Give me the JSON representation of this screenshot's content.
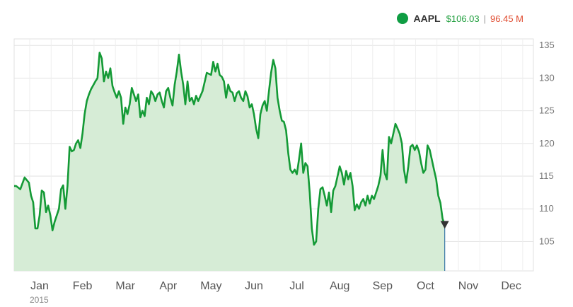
{
  "legend": {
    "ticker": "AAPL",
    "price": "$106.03",
    "separator": "|",
    "volume": "96.45 M"
  },
  "colors": {
    "line": "#149a36",
    "fill": "#d6ecd6",
    "grid": "#e2e2e2",
    "marker": "#333333",
    "cursor": "#3a78a8"
  },
  "chart_data": {
    "type": "area",
    "title": "",
    "xlabel": "",
    "ylabel": "",
    "ylim": [
      100.5,
      136
    ],
    "yticks": [
      105,
      110,
      115,
      120,
      125,
      130,
      135
    ],
    "x_tick_labels": [
      "Jan",
      "Feb",
      "Mar",
      "Apr",
      "May",
      "Jun",
      "Jul",
      "Aug",
      "Sep",
      "Oct",
      "Nov",
      "Dec"
    ],
    "x_tick_months": [
      1,
      2,
      3,
      4,
      5,
      6,
      7,
      8,
      9,
      10,
      11,
      12
    ],
    "year_label": "2015",
    "grid": true,
    "series": [
      {
        "points": [
          [
            0.45,
            113.5
          ],
          [
            0.55,
            113.0
          ],
          [
            0.65,
            114.8
          ],
          [
            0.75,
            114.0
          ],
          [
            0.8,
            112.0
          ],
          [
            0.85,
            111.0
          ],
          [
            0.9,
            107.0
          ],
          [
            0.95,
            107.0
          ],
          [
            1.0,
            109.0
          ],
          [
            1.05,
            112.8
          ],
          [
            1.1,
            112.5
          ],
          [
            1.15,
            109.5
          ],
          [
            1.2,
            110.5
          ],
          [
            1.25,
            109.0
          ],
          [
            1.3,
            106.7
          ],
          [
            1.35,
            108.0
          ],
          [
            1.45,
            110.0
          ],
          [
            1.5,
            113.0
          ],
          [
            1.55,
            113.6
          ],
          [
            1.6,
            110.0
          ],
          [
            1.65,
            113.5
          ],
          [
            1.7,
            119.5
          ],
          [
            1.75,
            118.8
          ],
          [
            1.8,
            119.0
          ],
          [
            1.85,
            120.0
          ],
          [
            1.9,
            120.5
          ],
          [
            1.95,
            119.3
          ],
          [
            2.0,
            121.5
          ],
          [
            2.05,
            124.5
          ],
          [
            2.1,
            126.5
          ],
          [
            2.15,
            127.5
          ],
          [
            2.2,
            128.3
          ],
          [
            2.3,
            129.5
          ],
          [
            2.35,
            130.0
          ],
          [
            2.4,
            133.9
          ],
          [
            2.45,
            133.0
          ],
          [
            2.5,
            129.5
          ],
          [
            2.55,
            131.0
          ],
          [
            2.6,
            130.0
          ],
          [
            2.65,
            131.5
          ],
          [
            2.7,
            128.8
          ],
          [
            2.75,
            127.8
          ],
          [
            2.8,
            127.0
          ],
          [
            2.85,
            128.0
          ],
          [
            2.9,
            127.0
          ],
          [
            2.95,
            123.0
          ],
          [
            3.0,
            125.5
          ],
          [
            3.05,
            124.5
          ],
          [
            3.1,
            126.0
          ],
          [
            3.15,
            128.5
          ],
          [
            3.2,
            127.5
          ],
          [
            3.25,
            126.5
          ],
          [
            3.3,
            127.5
          ],
          [
            3.35,
            124.0
          ],
          [
            3.4,
            125.0
          ],
          [
            3.45,
            124.2
          ],
          [
            3.5,
            127.0
          ],
          [
            3.55,
            126.0
          ],
          [
            3.6,
            128.0
          ],
          [
            3.65,
            127.5
          ],
          [
            3.7,
            126.5
          ],
          [
            3.75,
            127.5
          ],
          [
            3.8,
            127.8
          ],
          [
            3.85,
            126.5
          ],
          [
            3.9,
            125.5
          ],
          [
            3.95,
            128.0
          ],
          [
            4.0,
            128.5
          ],
          [
            4.05,
            127.0
          ],
          [
            4.1,
            125.8
          ],
          [
            4.15,
            129.0
          ],
          [
            4.2,
            131.0
          ],
          [
            4.25,
            133.6
          ],
          [
            4.3,
            131.0
          ],
          [
            4.35,
            129.0
          ],
          [
            4.4,
            126.0
          ],
          [
            4.45,
            129.5
          ],
          [
            4.5,
            126.5
          ],
          [
            4.55,
            127.0
          ],
          [
            4.6,
            126.0
          ],
          [
            4.65,
            127.3
          ],
          [
            4.7,
            126.5
          ],
          [
            4.8,
            128.0
          ],
          [
            4.9,
            130.8
          ],
          [
            5.0,
            130.5
          ],
          [
            5.05,
            132.5
          ],
          [
            5.1,
            131.0
          ],
          [
            5.15,
            132.2
          ],
          [
            5.2,
            130.5
          ],
          [
            5.25,
            130.2
          ],
          [
            5.3,
            129.5
          ],
          [
            5.35,
            127.0
          ],
          [
            5.4,
            129.0
          ],
          [
            5.45,
            128.0
          ],
          [
            5.5,
            127.8
          ],
          [
            5.55,
            126.5
          ],
          [
            5.6,
            127.7
          ],
          [
            5.65,
            128.0
          ],
          [
            5.7,
            127.0
          ],
          [
            5.75,
            126.5
          ],
          [
            5.8,
            128.0
          ],
          [
            5.85,
            127.2
          ],
          [
            5.9,
            125.5
          ],
          [
            5.95,
            126.0
          ],
          [
            6.0,
            124.5
          ],
          [
            6.05,
            122.3
          ],
          [
            6.1,
            120.8
          ],
          [
            6.15,
            124.5
          ],
          [
            6.2,
            125.8
          ],
          [
            6.25,
            126.5
          ],
          [
            6.3,
            125.0
          ],
          [
            6.35,
            128.0
          ],
          [
            6.4,
            130.8
          ],
          [
            6.45,
            132.8
          ],
          [
            6.5,
            131.5
          ],
          [
            6.55,
            127.0
          ],
          [
            6.6,
            125.0
          ],
          [
            6.65,
            123.5
          ],
          [
            6.7,
            123.3
          ],
          [
            6.75,
            122.0
          ],
          [
            6.8,
            118.5
          ],
          [
            6.85,
            116.0
          ],
          [
            6.9,
            115.5
          ],
          [
            6.95,
            116.0
          ],
          [
            7.0,
            115.3
          ],
          [
            7.05,
            117.5
          ],
          [
            7.1,
            120.0
          ],
          [
            7.15,
            115.5
          ],
          [
            7.2,
            117.0
          ],
          [
            7.25,
            116.5
          ],
          [
            7.3,
            112.5
          ],
          [
            7.35,
            107.0
          ],
          [
            7.4,
            104.5
          ],
          [
            7.45,
            105.0
          ],
          [
            7.5,
            110.0
          ],
          [
            7.55,
            113.0
          ],
          [
            7.6,
            113.3
          ],
          [
            7.65,
            112.0
          ],
          [
            7.7,
            110.5
          ],
          [
            7.75,
            112.5
          ],
          [
            7.8,
            109.5
          ],
          [
            7.85,
            112.8
          ],
          [
            7.9,
            113.5
          ],
          [
            7.95,
            115.0
          ],
          [
            8.0,
            116.5
          ],
          [
            8.05,
            115.5
          ],
          [
            8.1,
            113.7
          ],
          [
            8.15,
            115.8
          ],
          [
            8.2,
            114.5
          ],
          [
            8.25,
            115.5
          ],
          [
            8.3,
            113.5
          ],
          [
            8.35,
            109.8
          ],
          [
            8.4,
            110.7
          ],
          [
            8.45,
            110.0
          ],
          [
            8.5,
            111.0
          ],
          [
            8.55,
            111.5
          ],
          [
            8.6,
            110.5
          ],
          [
            8.65,
            112.0
          ],
          [
            8.7,
            110.8
          ],
          [
            8.75,
            112.0
          ],
          [
            8.8,
            111.5
          ],
          [
            8.85,
            112.5
          ],
          [
            8.9,
            113.5
          ],
          [
            8.95,
            115.0
          ],
          [
            9.0,
            119.0
          ],
          [
            9.05,
            115.5
          ],
          [
            9.1,
            114.5
          ],
          [
            9.15,
            121.0
          ],
          [
            9.2,
            120.0
          ],
          [
            9.25,
            121.5
          ],
          [
            9.3,
            123.0
          ],
          [
            9.35,
            122.3
          ],
          [
            9.4,
            121.5
          ],
          [
            9.45,
            120.0
          ],
          [
            9.5,
            116.0
          ],
          [
            9.55,
            114.0
          ],
          [
            9.6,
            116.5
          ],
          [
            9.65,
            119.5
          ],
          [
            9.7,
            119.8
          ],
          [
            9.75,
            119.0
          ],
          [
            9.8,
            119.7
          ],
          [
            9.85,
            118.8
          ],
          [
            9.9,
            117.0
          ],
          [
            9.95,
            115.5
          ],
          [
            10.0,
            116.0
          ],
          [
            10.05,
            119.7
          ],
          [
            10.1,
            119.0
          ],
          [
            10.15,
            117.5
          ],
          [
            10.2,
            116.0
          ],
          [
            10.25,
            114.5
          ],
          [
            10.3,
            112.0
          ],
          [
            10.35,
            110.9
          ],
          [
            10.4,
            108.5
          ],
          [
            10.45,
            107.5
          ]
        ]
      }
    ],
    "last_point": {
      "month": 10.45,
      "value": 107.5
    }
  }
}
